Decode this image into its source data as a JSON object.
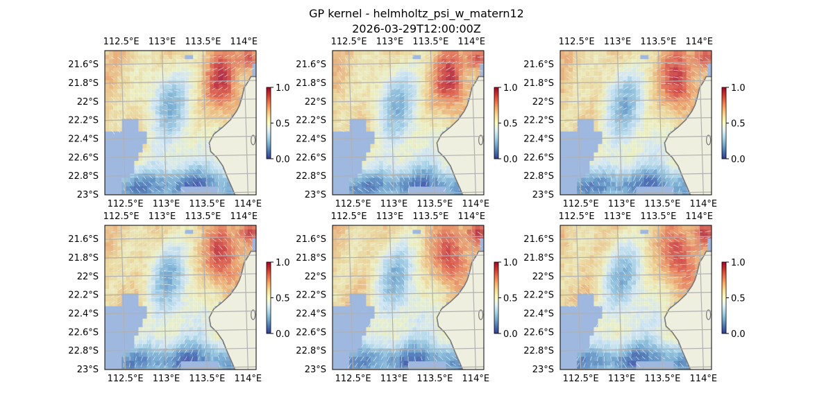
{
  "title": "GP kernel - helmholtz_psi_w_matern12",
  "subtitle": "2026-03-29T12:00:00Z",
  "colors": {
    "ocean_land_mask": "#9fb8e0",
    "land": "#efefdf",
    "coast": "#777777",
    "grid": "#b0b0b0",
    "arrows": "#f2f2f2",
    "colormap": [
      "#313695",
      "#4575b4",
      "#74add1",
      "#abd9e9",
      "#e0f3f8",
      "#ffffbf",
      "#fee090",
      "#fdae61",
      "#f46d43",
      "#d73027",
      "#a50026"
    ]
  },
  "chart_data": [
    {
      "panel": 1,
      "type": "heatmap",
      "x_tick_labels": [
        "112.5°E",
        "113°E",
        "113.5°E",
        "114°E"
      ],
      "y_tick_labels": [
        "21.6°S",
        "21.8°S",
        "22°S",
        "22.2°S",
        "22.4°S",
        "22.6°S",
        "22.8°S",
        "23°S"
      ],
      "x_ticks": [
        112.5,
        113,
        113.5,
        114
      ],
      "y_ticks": [
        -21.6,
        -21.8,
        -22.0,
        -22.2,
        -22.4,
        -22.6,
        -22.8,
        -23.0
      ],
      "xlim": [
        112.3,
        114.15
      ],
      "ylim": [
        -23.0,
        -21.45
      ],
      "colorbar": {
        "ticks": [
          "0.0",
          "0.5",
          "1.0"
        ],
        "range": [
          0,
          1
        ]
      },
      "grid": true
    },
    {
      "panel": 2,
      "type": "heatmap",
      "x_tick_labels": [
        "112.5°E",
        "113°E",
        "113.5°E",
        "114°E"
      ],
      "y_tick_labels": [
        "21.6°S",
        "21.8°S",
        "22°S",
        "22.2°S",
        "22.4°S",
        "22.6°S",
        "22.8°S",
        "23°S"
      ],
      "x_ticks": [
        112.5,
        113,
        113.5,
        114
      ],
      "y_ticks": [
        -21.6,
        -21.8,
        -22.0,
        -22.2,
        -22.4,
        -22.6,
        -22.8,
        -23.0
      ],
      "xlim": [
        112.3,
        114.15
      ],
      "ylim": [
        -23.0,
        -21.45
      ],
      "colorbar": {
        "ticks": [
          "0.0",
          "0.5",
          "1.0"
        ],
        "range": [
          0,
          1
        ]
      },
      "grid": true
    },
    {
      "panel": 3,
      "type": "heatmap",
      "x_tick_labels": [
        "112.5°E",
        "113°E",
        "113.5°E",
        "114°E"
      ],
      "y_tick_labels": [
        "21.6°S",
        "21.8°S",
        "22°S",
        "22.2°S",
        "22.4°S",
        "22.6°S",
        "22.8°S",
        "23°S"
      ],
      "x_ticks": [
        112.5,
        113,
        113.5,
        114
      ],
      "y_ticks": [
        -21.6,
        -21.8,
        -22.0,
        -22.2,
        -22.4,
        -22.6,
        -22.8,
        -23.0
      ],
      "xlim": [
        112.3,
        114.15
      ],
      "ylim": [
        -23.0,
        -21.45
      ],
      "colorbar": {
        "ticks": [
          "0.0",
          "0.5",
          "1.0"
        ],
        "range": [
          0,
          1
        ]
      },
      "grid": true
    },
    {
      "panel": 4,
      "type": "heatmap",
      "x_tick_labels": [
        "112.5°E",
        "113°E",
        "113.5°E",
        "114°E"
      ],
      "y_tick_labels": [
        "21.6°S",
        "21.8°S",
        "22°S",
        "22.2°S",
        "22.4°S",
        "22.6°S",
        "22.8°S",
        "23°S"
      ],
      "x_ticks": [
        112.5,
        113,
        113.5,
        114
      ],
      "y_ticks": [
        -21.6,
        -21.8,
        -22.0,
        -22.2,
        -22.4,
        -22.6,
        -22.8,
        -23.0
      ],
      "xlim": [
        112.3,
        114.15
      ],
      "ylim": [
        -23.0,
        -21.45
      ],
      "colorbar": {
        "ticks": [
          "0.0",
          "0.5",
          "1.0"
        ],
        "range": [
          0,
          1
        ]
      },
      "grid": true
    },
    {
      "panel": 5,
      "type": "heatmap",
      "x_tick_labels": [
        "112.5°E",
        "113°E",
        "113.5°E",
        "114°E"
      ],
      "y_tick_labels": [
        "21.6°S",
        "21.8°S",
        "22°S",
        "22.2°S",
        "22.4°S",
        "22.6°S",
        "22.8°S",
        "23°S"
      ],
      "x_ticks": [
        112.5,
        113,
        113.5,
        114
      ],
      "y_ticks": [
        -21.6,
        -21.8,
        -22.0,
        -22.2,
        -22.4,
        -22.6,
        -22.8,
        -23.0
      ],
      "xlim": [
        112.3,
        114.15
      ],
      "ylim": [
        -23.0,
        -21.45
      ],
      "colorbar": {
        "ticks": [
          "0.0",
          "0.5",
          "1.0"
        ],
        "range": [
          0,
          1
        ]
      },
      "grid": true
    },
    {
      "panel": 6,
      "type": "heatmap",
      "x_tick_labels": [
        "112.5°E",
        "113°E",
        "113.5°E",
        "114°E"
      ],
      "y_tick_labels": [
        "21.6°S",
        "21.8°S",
        "22°S",
        "22.2°S",
        "22.4°S",
        "22.6°S",
        "22.8°S",
        "23°S"
      ],
      "x_ticks": [
        112.5,
        113,
        113.5,
        114
      ],
      "y_ticks": [
        -21.6,
        -21.8,
        -22.0,
        -22.2,
        -22.4,
        -22.6,
        -22.8,
        -23.0
      ],
      "xlim": [
        112.3,
        114.15
      ],
      "ylim": [
        -23.0,
        -21.45
      ],
      "colorbar": {
        "ticks": [
          "0.0",
          "0.5",
          "1.0"
        ],
        "range": [
          0,
          1
        ]
      },
      "grid": true
    }
  ]
}
